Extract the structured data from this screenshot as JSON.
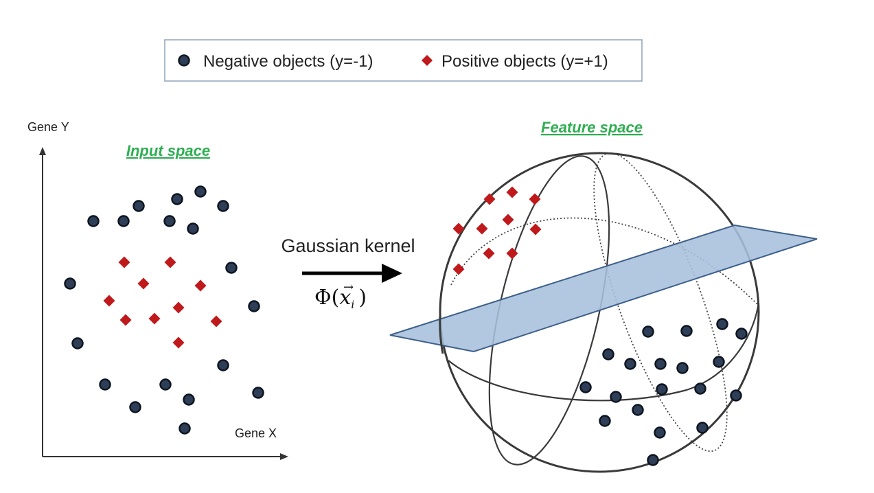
{
  "colors": {
    "negative": "#2f3e57",
    "negative_stroke": "#0d1520",
    "positive": "#c0191c",
    "title_green": "#2fae52",
    "plane_fill": "#a7bfdc",
    "plane_stroke": "#3d5f8a",
    "sphere_stroke": "#3a3a3a",
    "legend_border": "#8fa3b8"
  },
  "legend": {
    "negative_label": "Negative objects (y=-1)",
    "positive_label": "Positive objects (y=+1)",
    "negative_icon": "circle",
    "positive_icon": "diamond"
  },
  "input_space": {
    "title": "Input space",
    "y_axis_label": "Gene Y",
    "x_axis_label": "Gene X"
  },
  "transform": {
    "label": "Gaussian kernel",
    "formula_phi": "Φ(",
    "formula_x": "x",
    "formula_sub": "i",
    "formula_close": ")",
    "vector_arrow": "→"
  },
  "feature_space": {
    "title": "Feature space"
  }
}
